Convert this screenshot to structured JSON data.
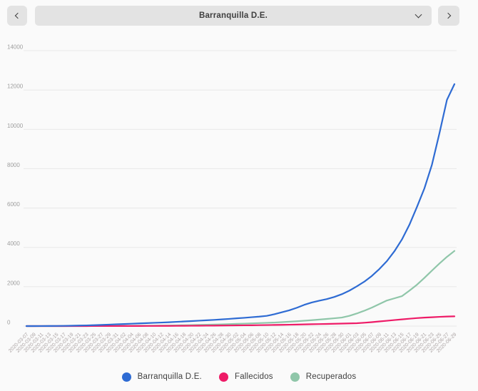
{
  "header": {
    "selector_value": "Barranquilla D.E.",
    "prev_icon": "chevron-left",
    "next_icon": "chevron-right",
    "dropdown_icon": "chevron-down"
  },
  "colors": {
    "background": "#fafafa",
    "control_bg": "#e3e3e3",
    "text": "#3f3f3f",
    "grid": "#e8e8e8",
    "y_axis_text": "#9e9e9e",
    "x_axis_text": "#aaa2a2",
    "series_blue": "#2e6bd3",
    "series_pink": "#ee1b67",
    "series_green": "#8fc6a9"
  },
  "chart_data": {
    "type": "line",
    "title": "",
    "xlabel": "",
    "ylabel": "",
    "grid": true,
    "legend_position": "bottom",
    "ylim": [
      0,
      14000
    ],
    "yticks": [
      0,
      2000,
      4000,
      6000,
      8000,
      10000,
      12000,
      14000
    ],
    "x": [
      "2020-03-07",
      "2020-03-09",
      "2020-03-11",
      "2020-03-13",
      "2020-03-15",
      "2020-03-17",
      "2020-03-19",
      "2020-03-21",
      "2020-03-23",
      "2020-03-25",
      "2020-03-27",
      "2020-03-29",
      "2020-03-31",
      "2020-04-02",
      "2020-04-04",
      "2020-04-06",
      "2020-04-08",
      "2020-04-10",
      "2020-04-12",
      "2020-04-14",
      "2020-04-16",
      "2020-04-18",
      "2020-04-20",
      "2020-04-22",
      "2020-04-24",
      "2020-04-26",
      "2020-04-28",
      "2020-04-30",
      "2020-05-02",
      "2020-05-04",
      "2020-05-06",
      "2020-05-08",
      "2020-05-10",
      "2020-05-12",
      "2020-05-14",
      "2020-05-16",
      "2020-05-18",
      "2020-05-20",
      "2020-05-22",
      "2020-05-24",
      "2020-05-26",
      "2020-05-28",
      "2020-05-30",
      "2020-06-01",
      "2020-06-03",
      "2020-06-05",
      "2020-06-07",
      "2020-06-09",
      "2020-06-11",
      "2020-06-13",
      "2020-06-15",
      "2020-06-17",
      "2020-06-19",
      "2020-06-21",
      "2020-06-23",
      "2020-06-25",
      "2020-06-27",
      "2020-06-29"
    ],
    "series": [
      {
        "name": "Barranquilla D.E.",
        "color": "#2e6bd3",
        "values": [
          0,
          1,
          2,
          4,
          7,
          12,
          18,
          26,
          35,
          45,
          60,
          75,
          90,
          105,
          120,
          135,
          150,
          165,
          180,
          195,
          215,
          235,
          255,
          275,
          295,
          315,
          340,
          365,
          395,
          420,
          450,
          480,
          520,
          600,
          700,
          800,
          930,
          1080,
          1200,
          1290,
          1370,
          1480,
          1620,
          1800,
          2020,
          2260,
          2550,
          2900,
          3300,
          3800,
          4400,
          5150,
          6050,
          7000,
          8200,
          9800,
          11500,
          12300
        ]
      },
      {
        "name": "Fallecidos",
        "color": "#ee1b67",
        "values": [
          0,
          0,
          0,
          0,
          0,
          0,
          1,
          1,
          1,
          2,
          2,
          3,
          3,
          4,
          4,
          5,
          6,
          7,
          8,
          10,
          12,
          14,
          16,
          18,
          21,
          24,
          27,
          30,
          34,
          38,
          42,
          47,
          52,
          58,
          64,
          70,
          78,
          86,
          94,
          102,
          110,
          118,
          127,
          136,
          146,
          170,
          200,
          235,
          270,
          305,
          340,
          375,
          405,
          430,
          450,
          470,
          485,
          495
        ]
      },
      {
        "name": "Recuperados",
        "color": "#8fc6a9",
        "values": [
          0,
          0,
          0,
          1,
          1,
          1,
          2,
          2,
          3,
          3,
          4,
          5,
          6,
          8,
          10,
          13,
          16,
          20,
          25,
          30,
          36,
          42,
          50,
          58,
          67,
          77,
          88,
          100,
          112,
          125,
          138,
          152,
          166,
          180,
          200,
          222,
          246,
          272,
          300,
          330,
          362,
          396,
          432,
          520,
          640,
          780,
          940,
          1120,
          1300,
          1410,
          1520,
          1800,
          2100,
          2450,
          2820,
          3180,
          3520,
          3820
        ]
      }
    ]
  }
}
